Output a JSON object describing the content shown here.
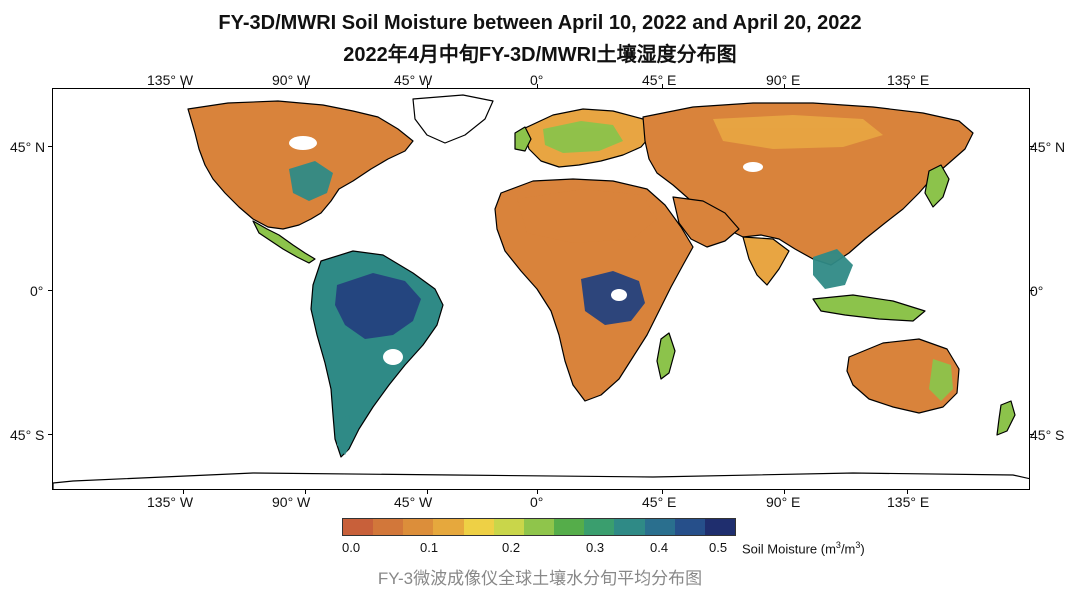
{
  "title_en": "FY-3D/MWRI Soil Moisture between April 10, 2022 and April 20, 2022",
  "title_cn": "2022年4月中旬FY-3D/MWRI土壤湿度分布图",
  "caption": "FY-3微波成像仪全球土壤水分旬平均分布图",
  "lon_labels": [
    "135° W",
    "90° W",
    "45° W",
    "0°",
    "45° E",
    "90° E",
    "135° E"
  ],
  "lat_labels": [
    "45° N",
    "0°",
    "45° S"
  ],
  "colorbar": {
    "labels": [
      "0.0",
      "0.1",
      "0.2",
      "0.3",
      "0.4",
      "0.5"
    ],
    "unit_prefix": "Soil Moisture (m",
    "unit_sup1": "3",
    "unit_mid": "/m",
    "unit_sup2": "3",
    "unit_suffix": ")",
    "colors": [
      "#c8603a",
      "#d2773a",
      "#dc8e3a",
      "#e6a83d",
      "#eed045",
      "#c9d64a",
      "#8fc54b",
      "#55ad4a",
      "#3a9e6e",
      "#2f8a86",
      "#2a6f8e",
      "#264f8a",
      "#1f2e6e"
    ]
  },
  "colors": {
    "dry": "#d9833b",
    "semi_dry": "#e8a542",
    "moderate": "#8cc34b",
    "wet": "#2f8a86",
    "very_wet": "#24417e",
    "no_data": "#ffffff",
    "coast": "#000000"
  }
}
